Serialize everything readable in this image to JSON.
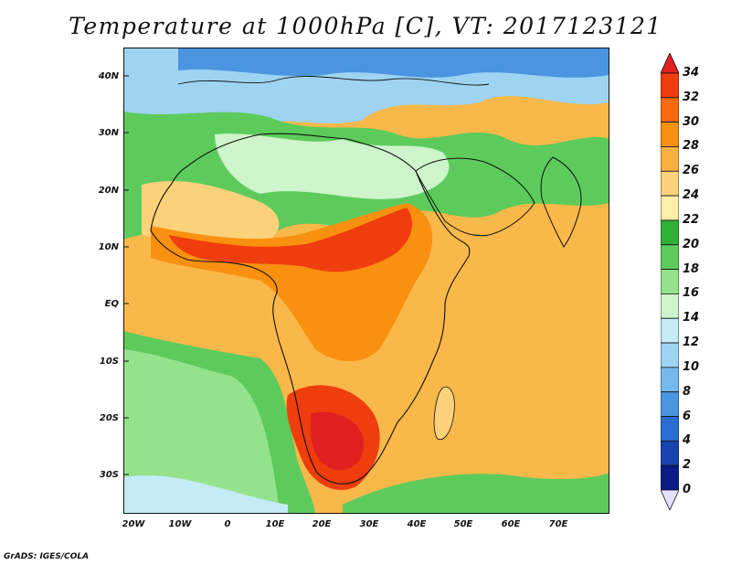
{
  "title": "Temperature at 1000hPa [C], VT: 2017123121",
  "credit": "GrADS: IGES/COLA",
  "lat_labels": [
    "40N",
    "30N",
    "20N",
    "10N",
    "EQ",
    "10S",
    "20S",
    "30S"
  ],
  "lon_labels": [
    "20W",
    "10W",
    "0",
    "10E",
    "20E",
    "30E",
    "40E",
    "50E",
    "60E",
    "70E"
  ],
  "colorbar": {
    "ticks": [
      "34",
      "32",
      "30",
      "28",
      "26",
      "24",
      "22",
      "20",
      "18",
      "16",
      "14",
      "12",
      "10",
      "8",
      "6",
      "4",
      "2",
      "0"
    ],
    "colors": [
      "#e02020",
      "#ef3d0d",
      "#f86a0c",
      "#f9900f",
      "#f8b040",
      "#fbd27a",
      "#fdeea9",
      "#2fb035",
      "#5dcb5c",
      "#94e38c",
      "#cdf4ca",
      "#c4ebf6",
      "#9ed3f2",
      "#75b8ec",
      "#4a94e0",
      "#2b6dd1",
      "#1844b0",
      "#0a1c85"
    ]
  }
}
